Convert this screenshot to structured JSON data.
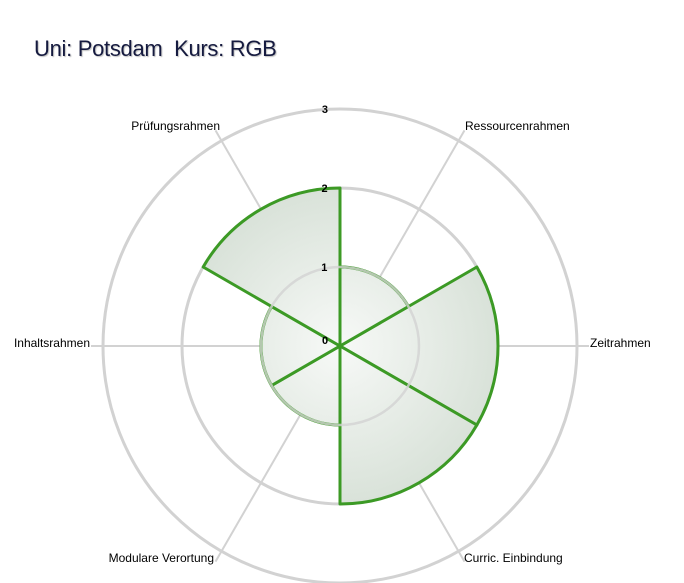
{
  "title": "Uni: Potsdam  Kurs: RGB",
  "chart_data": {
    "type": "polar-area",
    "title": "Uni: Potsdam  Kurs: RGB",
    "categories": [
      "Zeitrahmen",
      "Curric. Einbindung",
      "Modulare Verortung",
      "Inhaltsrahmen",
      "Prüfungsrahmen",
      "Ressourcenrahmen"
    ],
    "values": [
      2,
      2,
      1,
      1,
      2,
      1
    ],
    "rlim": [
      0,
      3
    ],
    "ticks": [
      0,
      1,
      2,
      3
    ],
    "colors": {
      "fill": "#c9d6c9",
      "fill_center": "#f7f9f7",
      "stroke": "#3c9a25",
      "grid": "#d2d2d2"
    }
  }
}
